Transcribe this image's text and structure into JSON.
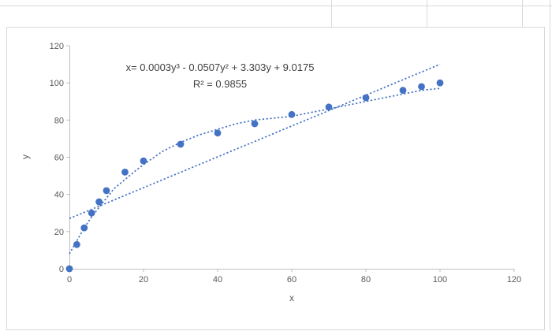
{
  "window": {
    "background": "#ffffff",
    "gridline_color": "#d9d9d9"
  },
  "chart": {
    "background": "#ffffff",
    "border_color": "#d9d9d9",
    "axis_color": "#bfbfbf",
    "tick_text_color": "#595959",
    "accent": "#4472c4",
    "annotation_text_color": "#3f3f3f"
  },
  "chart_data": {
    "type": "scatter",
    "title": "",
    "xlabel": "x",
    "ylabel": "y",
    "xlim": [
      0,
      120
    ],
    "ylim": [
      0,
      120
    ],
    "xticks": [
      0,
      20,
      40,
      60,
      80,
      100,
      120
    ],
    "yticks": [
      0,
      20,
      40,
      60,
      80,
      100,
      120
    ],
    "grid": false,
    "legend": false,
    "annotations": [
      "x= 0.0003y³ - 0.0507y² + 3.303y + 9.0175",
      "R² = 0.9855"
    ],
    "series": [
      {
        "name": "observed-points",
        "type": "scatter",
        "color": "#4472c4",
        "points": [
          [
            0,
            0
          ],
          [
            2,
            13
          ],
          [
            4,
            22
          ],
          [
            6,
            30
          ],
          [
            8,
            36
          ],
          [
            10,
            42
          ],
          [
            15,
            52
          ],
          [
            20,
            58
          ],
          [
            30,
            67
          ],
          [
            40,
            73
          ],
          [
            50,
            78
          ],
          [
            60,
            83
          ],
          [
            70,
            87
          ],
          [
            80,
            92
          ],
          [
            90,
            96
          ],
          [
            95,
            98
          ],
          [
            100,
            100
          ]
        ]
      },
      {
        "name": "polynomial-trendline",
        "type": "dotted-line",
        "color": "#4472c4",
        "points": [
          [
            0,
            8
          ],
          [
            2,
            15
          ],
          [
            4,
            22
          ],
          [
            6,
            28
          ],
          [
            8,
            33
          ],
          [
            10,
            38
          ],
          [
            12,
            43
          ],
          [
            15,
            48
          ],
          [
            18,
            53
          ],
          [
            20,
            56
          ],
          [
            25,
            63
          ],
          [
            30,
            68
          ],
          [
            35,
            72
          ],
          [
            40,
            75
          ],
          [
            45,
            78
          ],
          [
            50,
            80
          ],
          [
            55,
            81
          ],
          [
            60,
            82
          ],
          [
            65,
            84
          ],
          [
            70,
            86
          ],
          [
            75,
            88
          ],
          [
            80,
            90
          ],
          [
            85,
            92
          ],
          [
            90,
            94
          ],
          [
            95,
            96
          ],
          [
            100,
            97
          ]
        ]
      },
      {
        "name": "linear-trendline",
        "type": "dotted-line",
        "color": "#4472c4",
        "points": [
          [
            0,
            27
          ],
          [
            100,
            110
          ]
        ]
      }
    ]
  }
}
